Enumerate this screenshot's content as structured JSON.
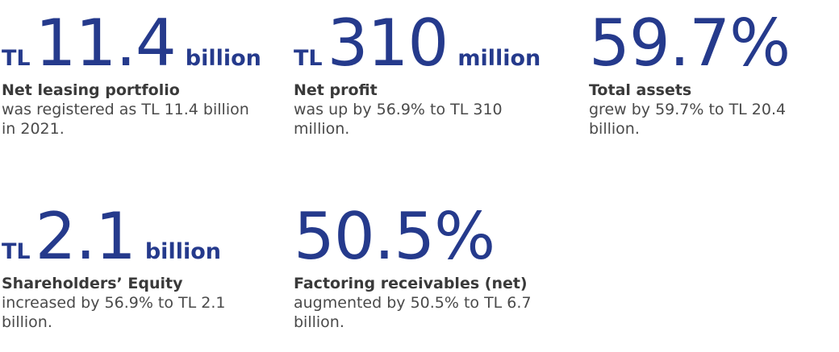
{
  "stats": [
    {
      "prefix": "TL",
      "number": "11.4",
      "suffix": "billion",
      "title": "Net leasing portfolio",
      "description": "was registered as TL 11.4 billion in 2021."
    },
    {
      "prefix": "TL",
      "number": "310",
      "suffix": "million",
      "title": "Net profit",
      "description": "was up by 56.9% to TL 310 million."
    },
    {
      "prefix": "",
      "number": "59.7%",
      "suffix": "",
      "title": "Total assets",
      "description": "grew by 59.7% to TL 20.4 billion."
    },
    {
      "prefix": "TL",
      "number": "2.1",
      "suffix": "billion",
      "title": "Shareholders’ Equity",
      "description": "increased by 56.9% to TL 2.1 billion."
    },
    {
      "prefix": "",
      "number": "50.5%",
      "suffix": "",
      "title": "Factoring receivables (net)",
      "description": "augmented by 50.5% to TL 6.7 billion."
    }
  ],
  "colors": {
    "figure": "#253a8c",
    "title": "#3a3a3a",
    "description": "#4a4a4a"
  }
}
